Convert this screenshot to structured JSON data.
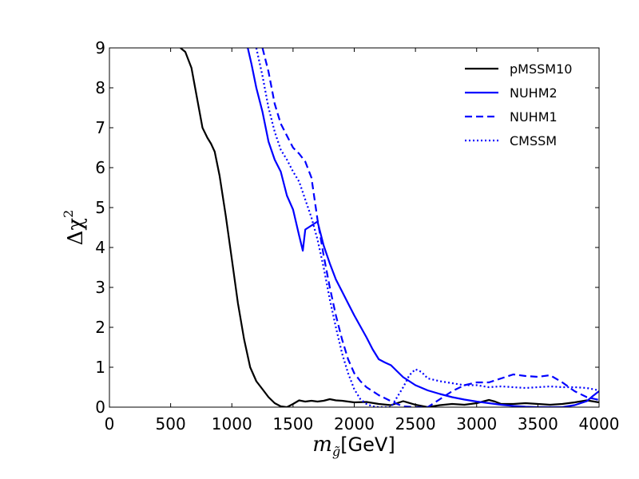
{
  "chart_data": {
    "type": "line",
    "title": "",
    "xlabel": "m_g̃[GeV]",
    "xlabel_main": "m",
    "xlabel_sub": "g̃",
    "xlabel_unit": "[GeV]",
    "ylabel": "Δχ²",
    "ylabel_main": "Δχ",
    "ylabel_sup": "2",
    "xlim": [
      0,
      4000
    ],
    "ylim": [
      0,
      9
    ],
    "xticks": [
      0,
      500,
      1000,
      1500,
      2000,
      2500,
      3000,
      3500,
      4000
    ],
    "yticks": [
      0,
      1,
      2,
      3,
      4,
      5,
      6,
      7,
      8,
      9
    ],
    "grid": false,
    "legend_position": "top-right",
    "series": [
      {
        "name": "pMSSM10",
        "color": "#000000",
        "style": "solid",
        "x": [
          580,
          620,
          670,
          700,
          730,
          760,
          800,
          830,
          860,
          900,
          950,
          1000,
          1050,
          1100,
          1150,
          1200,
          1250,
          1300,
          1350,
          1400,
          1450,
          1500,
          1550,
          1600,
          1650,
          1700,
          1750,
          1800,
          1850,
          1900,
          2000,
          2100,
          2200,
          2300,
          2400,
          2500,
          2600,
          2700,
          2800,
          2900,
          3000,
          3100,
          3150,
          3200,
          3300,
          3400,
          3500,
          3600,
          3700,
          3800,
          3900,
          4000
        ],
        "y": [
          9.0,
          8.9,
          8.5,
          8.0,
          7.5,
          7.0,
          6.75,
          6.6,
          6.4,
          5.8,
          4.8,
          3.7,
          2.6,
          1.7,
          1.0,
          0.65,
          0.45,
          0.25,
          0.1,
          0.02,
          0.0,
          0.08,
          0.17,
          0.14,
          0.16,
          0.14,
          0.16,
          0.2,
          0.17,
          0.16,
          0.12,
          0.13,
          0.08,
          0.05,
          0.15,
          0.06,
          0.0,
          0.05,
          0.08,
          0.06,
          0.1,
          0.18,
          0.14,
          0.08,
          0.08,
          0.1,
          0.08,
          0.06,
          0.08,
          0.12,
          0.17,
          0.12
        ]
      },
      {
        "name": "NUHM2",
        "color": "#0000ff",
        "style": "solid",
        "x": [
          1130,
          1160,
          1200,
          1250,
          1300,
          1350,
          1400,
          1450,
          1500,
          1550,
          1580,
          1600,
          1650,
          1700,
          1750,
          1800,
          1850,
          1900,
          1950,
          2000,
          2100,
          2150,
          2200,
          2250,
          2300,
          2350,
          2400,
          2500,
          2600,
          2700,
          2800,
          2900,
          3000,
          3100,
          3200,
          3300,
          3400,
          3500,
          3600,
          3700,
          3800,
          3900,
          3950,
          4000
        ],
        "y": [
          9.0,
          8.6,
          8.0,
          7.4,
          6.65,
          6.2,
          5.9,
          5.3,
          4.95,
          4.3,
          3.92,
          4.45,
          4.55,
          4.65,
          4.05,
          3.6,
          3.2,
          2.9,
          2.6,
          2.3,
          1.75,
          1.45,
          1.2,
          1.12,
          1.05,
          0.9,
          0.75,
          0.55,
          0.42,
          0.33,
          0.25,
          0.19,
          0.14,
          0.1,
          0.06,
          0.03,
          0.01,
          0.0,
          0.0,
          0.0,
          0.05,
          0.15,
          0.28,
          0.4
        ]
      },
      {
        "name": "NUHM1",
        "color": "#0000ff",
        "style": "dashed",
        "x": [
          1250,
          1300,
          1350,
          1400,
          1450,
          1500,
          1550,
          1600,
          1650,
          1700,
          1750,
          1800,
          1850,
          1900,
          1950,
          2000,
          2050,
          2100,
          2200,
          2300,
          2350,
          2400,
          2500,
          2600,
          2700,
          2800,
          2900,
          3000,
          3100,
          3200,
          3300,
          3400,
          3500,
          3600,
          3700,
          3800,
          3900,
          4000
        ],
        "y": [
          9.0,
          8.4,
          7.6,
          7.1,
          6.8,
          6.5,
          6.35,
          6.15,
          5.75,
          4.7,
          3.8,
          3.0,
          2.3,
          1.7,
          1.2,
          0.85,
          0.65,
          0.5,
          0.3,
          0.15,
          0.08,
          0.02,
          0.0,
          0.0,
          0.2,
          0.4,
          0.55,
          0.62,
          0.62,
          0.72,
          0.82,
          0.78,
          0.76,
          0.8,
          0.62,
          0.4,
          0.25,
          0.18
        ]
      },
      {
        "name": "CMSSM",
        "color": "#0000ff",
        "style": "dotted",
        "x": [
          1200,
          1250,
          1300,
          1350,
          1400,
          1450,
          1500,
          1550,
          1600,
          1650,
          1700,
          1750,
          1800,
          1850,
          1900,
          1950,
          2000,
          2050,
          2100,
          2150,
          2200,
          2300,
          2400,
          2450,
          2500,
          2550,
          2600,
          2700,
          2800,
          2900,
          3000,
          3100,
          3200,
          3300,
          3400,
          3500,
          3600,
          3700,
          3800,
          3900,
          4000
        ],
        "y": [
          9.0,
          8.3,
          7.5,
          6.9,
          6.45,
          6.2,
          5.9,
          5.65,
          5.2,
          4.75,
          4.2,
          3.5,
          2.7,
          2.0,
          1.35,
          0.85,
          0.45,
          0.2,
          0.08,
          0.02,
          0.0,
          0.0,
          0.5,
          0.8,
          0.95,
          0.88,
          0.72,
          0.65,
          0.6,
          0.55,
          0.55,
          0.5,
          0.52,
          0.5,
          0.48,
          0.5,
          0.52,
          0.5,
          0.5,
          0.48,
          0.42
        ]
      }
    ]
  }
}
